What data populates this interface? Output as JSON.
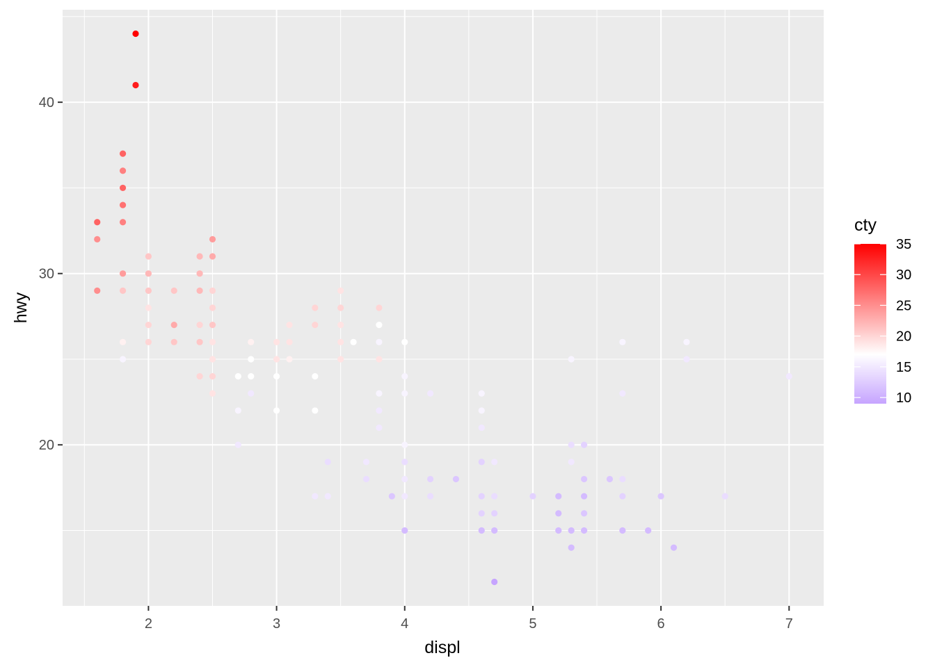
{
  "chart_data": {
    "type": "scatter",
    "title": "",
    "xlabel": "displ",
    "ylabel": "hwy",
    "xlim": [
      1.33,
      7.27
    ],
    "ylim": [
      10.6,
      45.4
    ],
    "x_ticks": [
      2,
      3,
      4,
      5,
      6,
      7
    ],
    "x_tick_labels": [
      "2",
      "3",
      "4",
      "5",
      "6",
      "7"
    ],
    "y_ticks": [
      20,
      30,
      40
    ],
    "y_tick_labels": [
      "20",
      "30",
      "40"
    ],
    "grid": true,
    "panel_background": "#ebebeb",
    "legend": {
      "title": "cty",
      "placement": "right",
      "ticks": [
        10,
        15,
        20,
        25,
        30,
        35
      ],
      "tick_labels": [
        "10",
        "15",
        "20",
        "25",
        "30",
        "35"
      ],
      "range": [
        9,
        35
      ],
      "low_color": "#c6a4ff",
      "mid_color": "#ffffff",
      "high_color": "#ff0000",
      "midpoint": 17
    },
    "points": [
      [
        1.9,
        44,
        35
      ],
      [
        1.9,
        41,
        33
      ],
      [
        1.8,
        37,
        28
      ],
      [
        1.8,
        36,
        26
      ],
      [
        1.8,
        35,
        28
      ],
      [
        1.8,
        34,
        27
      ],
      [
        1.8,
        33,
        26
      ],
      [
        1.8,
        30,
        24
      ],
      [
        1.8,
        29,
        21
      ],
      [
        1.8,
        26,
        18
      ],
      [
        1.8,
        25,
        16
      ],
      [
        1.6,
        33,
        28
      ],
      [
        1.6,
        32,
        25
      ],
      [
        1.6,
        29,
        25
      ],
      [
        2.0,
        31,
        21
      ],
      [
        2.0,
        30,
        22
      ],
      [
        2.0,
        29,
        21
      ],
      [
        2.0,
        28,
        19
      ],
      [
        2.0,
        27,
        20
      ],
      [
        2.0,
        26,
        20
      ],
      [
        2.2,
        29,
        21
      ],
      [
        2.2,
        27,
        23
      ],
      [
        2.2,
        26,
        21
      ],
      [
        2.4,
        31,
        22
      ],
      [
        2.4,
        30,
        22
      ],
      [
        2.4,
        29,
        22
      ],
      [
        2.4,
        27,
        20
      ],
      [
        2.4,
        26,
        21
      ],
      [
        2.4,
        24,
        20
      ],
      [
        2.5,
        32,
        24
      ],
      [
        2.5,
        31,
        23
      ],
      [
        2.5,
        29,
        20
      ],
      [
        2.5,
        28,
        20
      ],
      [
        2.5,
        27,
        21
      ],
      [
        2.5,
        26,
        19
      ],
      [
        2.5,
        25,
        19
      ],
      [
        2.5,
        24,
        20
      ],
      [
        2.5,
        23,
        19
      ],
      [
        2.7,
        24,
        17
      ],
      [
        2.7,
        22,
        16
      ],
      [
        2.7,
        20,
        15
      ],
      [
        2.8,
        26,
        18
      ],
      [
        2.8,
        25,
        17
      ],
      [
        2.8,
        24,
        17
      ],
      [
        2.8,
        23,
        15
      ],
      [
        3.0,
        26,
        19
      ],
      [
        3.0,
        25,
        19
      ],
      [
        3.0,
        24,
        17
      ],
      [
        3.0,
        22,
        17
      ],
      [
        3.1,
        27,
        19
      ],
      [
        3.1,
        26,
        19
      ],
      [
        3.1,
        25,
        18
      ],
      [
        3.3,
        28,
        20
      ],
      [
        3.3,
        27,
        20
      ],
      [
        3.3,
        24,
        17
      ],
      [
        3.3,
        22,
        17
      ],
      [
        3.3,
        17,
        15
      ],
      [
        3.4,
        19,
        14
      ],
      [
        3.4,
        17,
        15
      ],
      [
        3.5,
        29,
        19
      ],
      [
        3.5,
        28,
        20
      ],
      [
        3.5,
        27,
        19
      ],
      [
        3.5,
        26,
        19
      ],
      [
        3.5,
        25,
        19
      ],
      [
        3.6,
        26,
        17
      ],
      [
        3.7,
        19,
        15
      ],
      [
        3.7,
        18,
        14
      ],
      [
        3.8,
        28,
        20
      ],
      [
        3.8,
        27,
        17
      ],
      [
        3.8,
        26,
        16
      ],
      [
        3.8,
        25,
        19
      ],
      [
        3.8,
        23,
        16
      ],
      [
        3.8,
        22,
        15
      ],
      [
        3.8,
        21,
        15
      ],
      [
        3.9,
        17,
        12
      ],
      [
        4.0,
        26,
        17
      ],
      [
        4.0,
        24,
        16
      ],
      [
        4.0,
        23,
        16
      ],
      [
        4.0,
        20,
        16
      ],
      [
        4.0,
        19,
        14
      ],
      [
        4.0,
        18,
        15
      ],
      [
        4.0,
        17,
        15
      ],
      [
        4.0,
        15,
        11
      ],
      [
        4.2,
        23,
        15
      ],
      [
        4.2,
        18,
        13
      ],
      [
        4.2,
        17,
        14
      ],
      [
        4.4,
        18,
        12
      ],
      [
        4.6,
        23,
        16
      ],
      [
        4.6,
        22,
        16
      ],
      [
        4.6,
        21,
        15
      ],
      [
        4.6,
        19,
        13
      ],
      [
        4.6,
        17,
        13
      ],
      [
        4.6,
        16,
        13
      ],
      [
        4.6,
        15,
        11
      ],
      [
        4.7,
        19,
        15
      ],
      [
        4.7,
        17,
        14
      ],
      [
        4.7,
        16,
        13
      ],
      [
        4.7,
        15,
        11
      ],
      [
        4.7,
        12,
        9
      ],
      [
        5.0,
        17,
        13
      ],
      [
        5.2,
        17,
        11
      ],
      [
        5.2,
        16,
        11
      ],
      [
        5.2,
        15,
        11
      ],
      [
        5.3,
        25,
        16
      ],
      [
        5.3,
        20,
        14
      ],
      [
        5.3,
        19,
        15
      ],
      [
        5.3,
        15,
        11
      ],
      [
        5.3,
        14,
        11
      ],
      [
        5.4,
        20,
        13
      ],
      [
        5.4,
        18,
        12
      ],
      [
        5.4,
        17,
        11
      ],
      [
        5.4,
        16,
        12
      ],
      [
        5.4,
        15,
        11
      ],
      [
        5.6,
        18,
        12
      ],
      [
        5.7,
        26,
        16
      ],
      [
        5.7,
        23,
        15
      ],
      [
        5.7,
        18,
        14
      ],
      [
        5.7,
        17,
        13
      ],
      [
        5.7,
        15,
        11
      ],
      [
        5.9,
        15,
        11
      ],
      [
        6.0,
        17,
        12
      ],
      [
        6.1,
        14,
        11
      ],
      [
        6.2,
        26,
        16
      ],
      [
        6.2,
        25,
        15
      ],
      [
        6.5,
        17,
        14
      ],
      [
        7.0,
        24,
        15
      ]
    ]
  }
}
